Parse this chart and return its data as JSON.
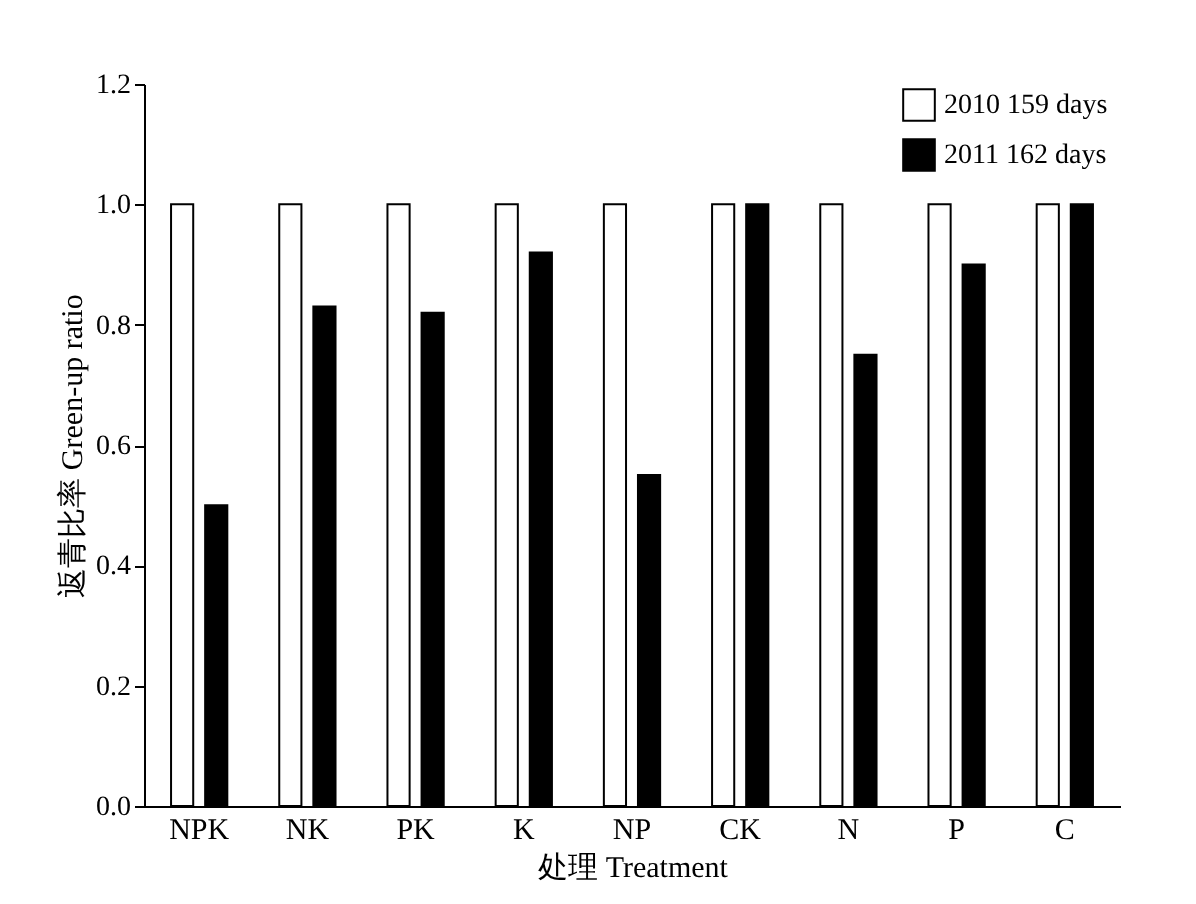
{
  "chart_data": {
    "type": "bar",
    "xlabel": "处理 Treatment",
    "ylabel": "返青比率 Green-up ratio",
    "categories": [
      "NPK",
      "NK",
      "PK",
      "K",
      "NP",
      "CK",
      "N",
      "P",
      "C"
    ],
    "series": [
      {
        "name": "2010  159 days",
        "color": "#ffffff",
        "values": [
          1,
          1,
          1,
          1,
          1,
          1,
          1,
          1,
          1
        ]
      },
      {
        "name": "2011  162 days",
        "color": "#000000",
        "values": [
          0.5,
          0.83,
          0.82,
          0.92,
          0.55,
          1,
          0.75,
          0.9,
          1
        ]
      }
    ],
    "ylim": [
      0,
      1.2
    ],
    "yticks": [
      {
        "value": 0,
        "label": "0.0"
      },
      0.2,
      0.4,
      0.6,
      0.8,
      {
        "value": 1,
        "label": "1.0"
      },
      1.2
    ],
    "grid": false,
    "legend": "top right"
  }
}
